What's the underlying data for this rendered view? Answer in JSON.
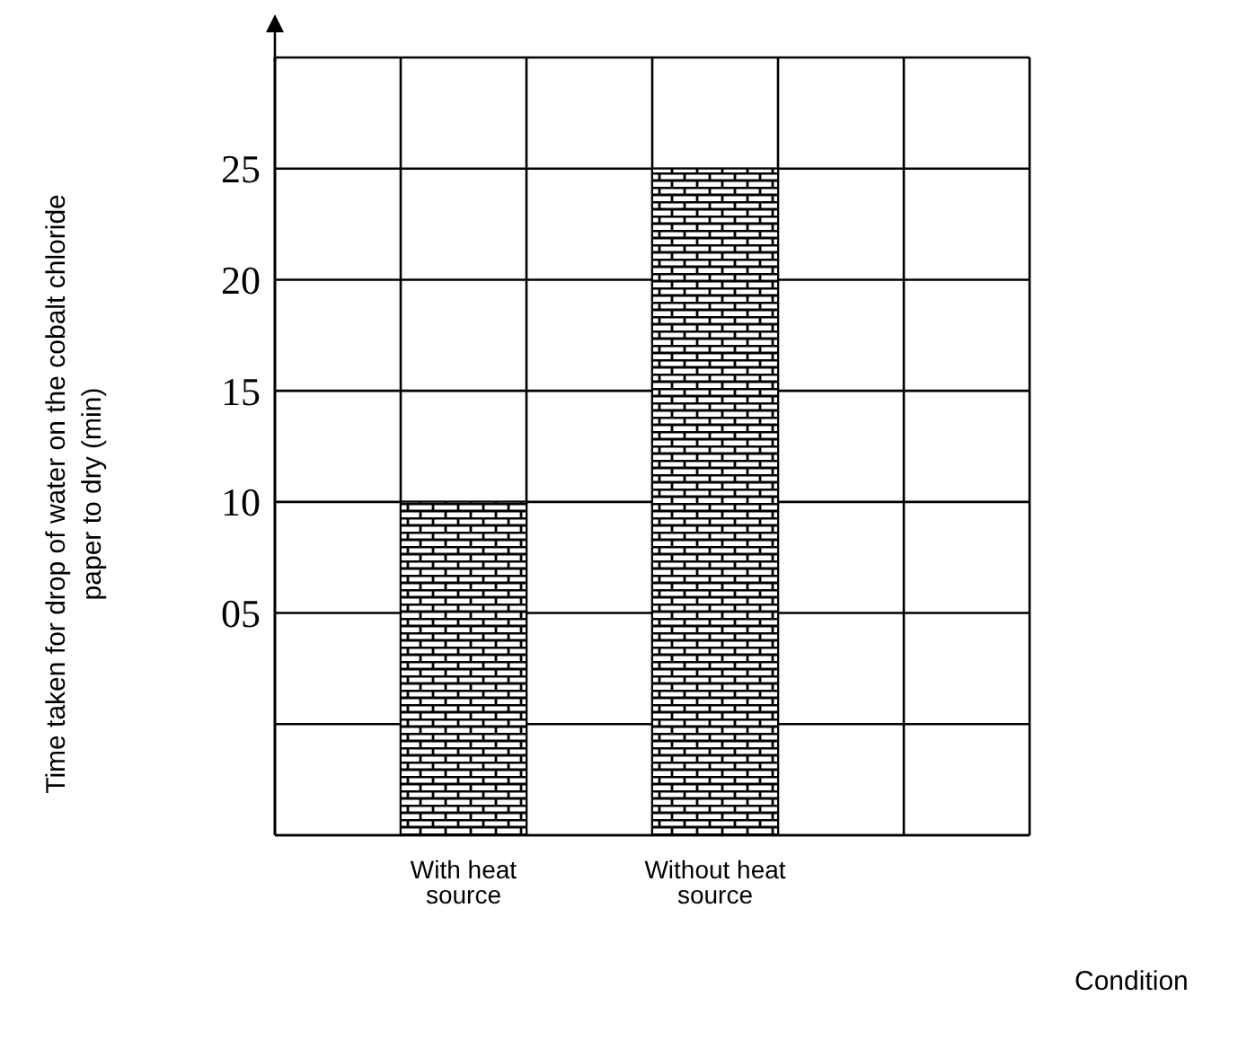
{
  "chart_data": {
    "type": "bar",
    "xlabel": "Condition",
    "ylabel": "Time taken for drop of water on the cobalt chloride paper to dry (min)",
    "categories": [
      null,
      "With heat source",
      null,
      "Without heat source",
      null,
      null
    ],
    "values": [
      null,
      15,
      null,
      30,
      null,
      null
    ],
    "base": [
      null,
      -5,
      null,
      -5,
      null,
      null
    ],
    "color": "#000000",
    "ylim": [
      -5,
      30
    ],
    "yticks": [
      {
        "value": 0,
        "label": null
      },
      {
        "value": 5,
        "label": "05"
      },
      10,
      15,
      20,
      25,
      {
        "value": 30,
        "label": null
      }
    ],
    "grid": true
  }
}
